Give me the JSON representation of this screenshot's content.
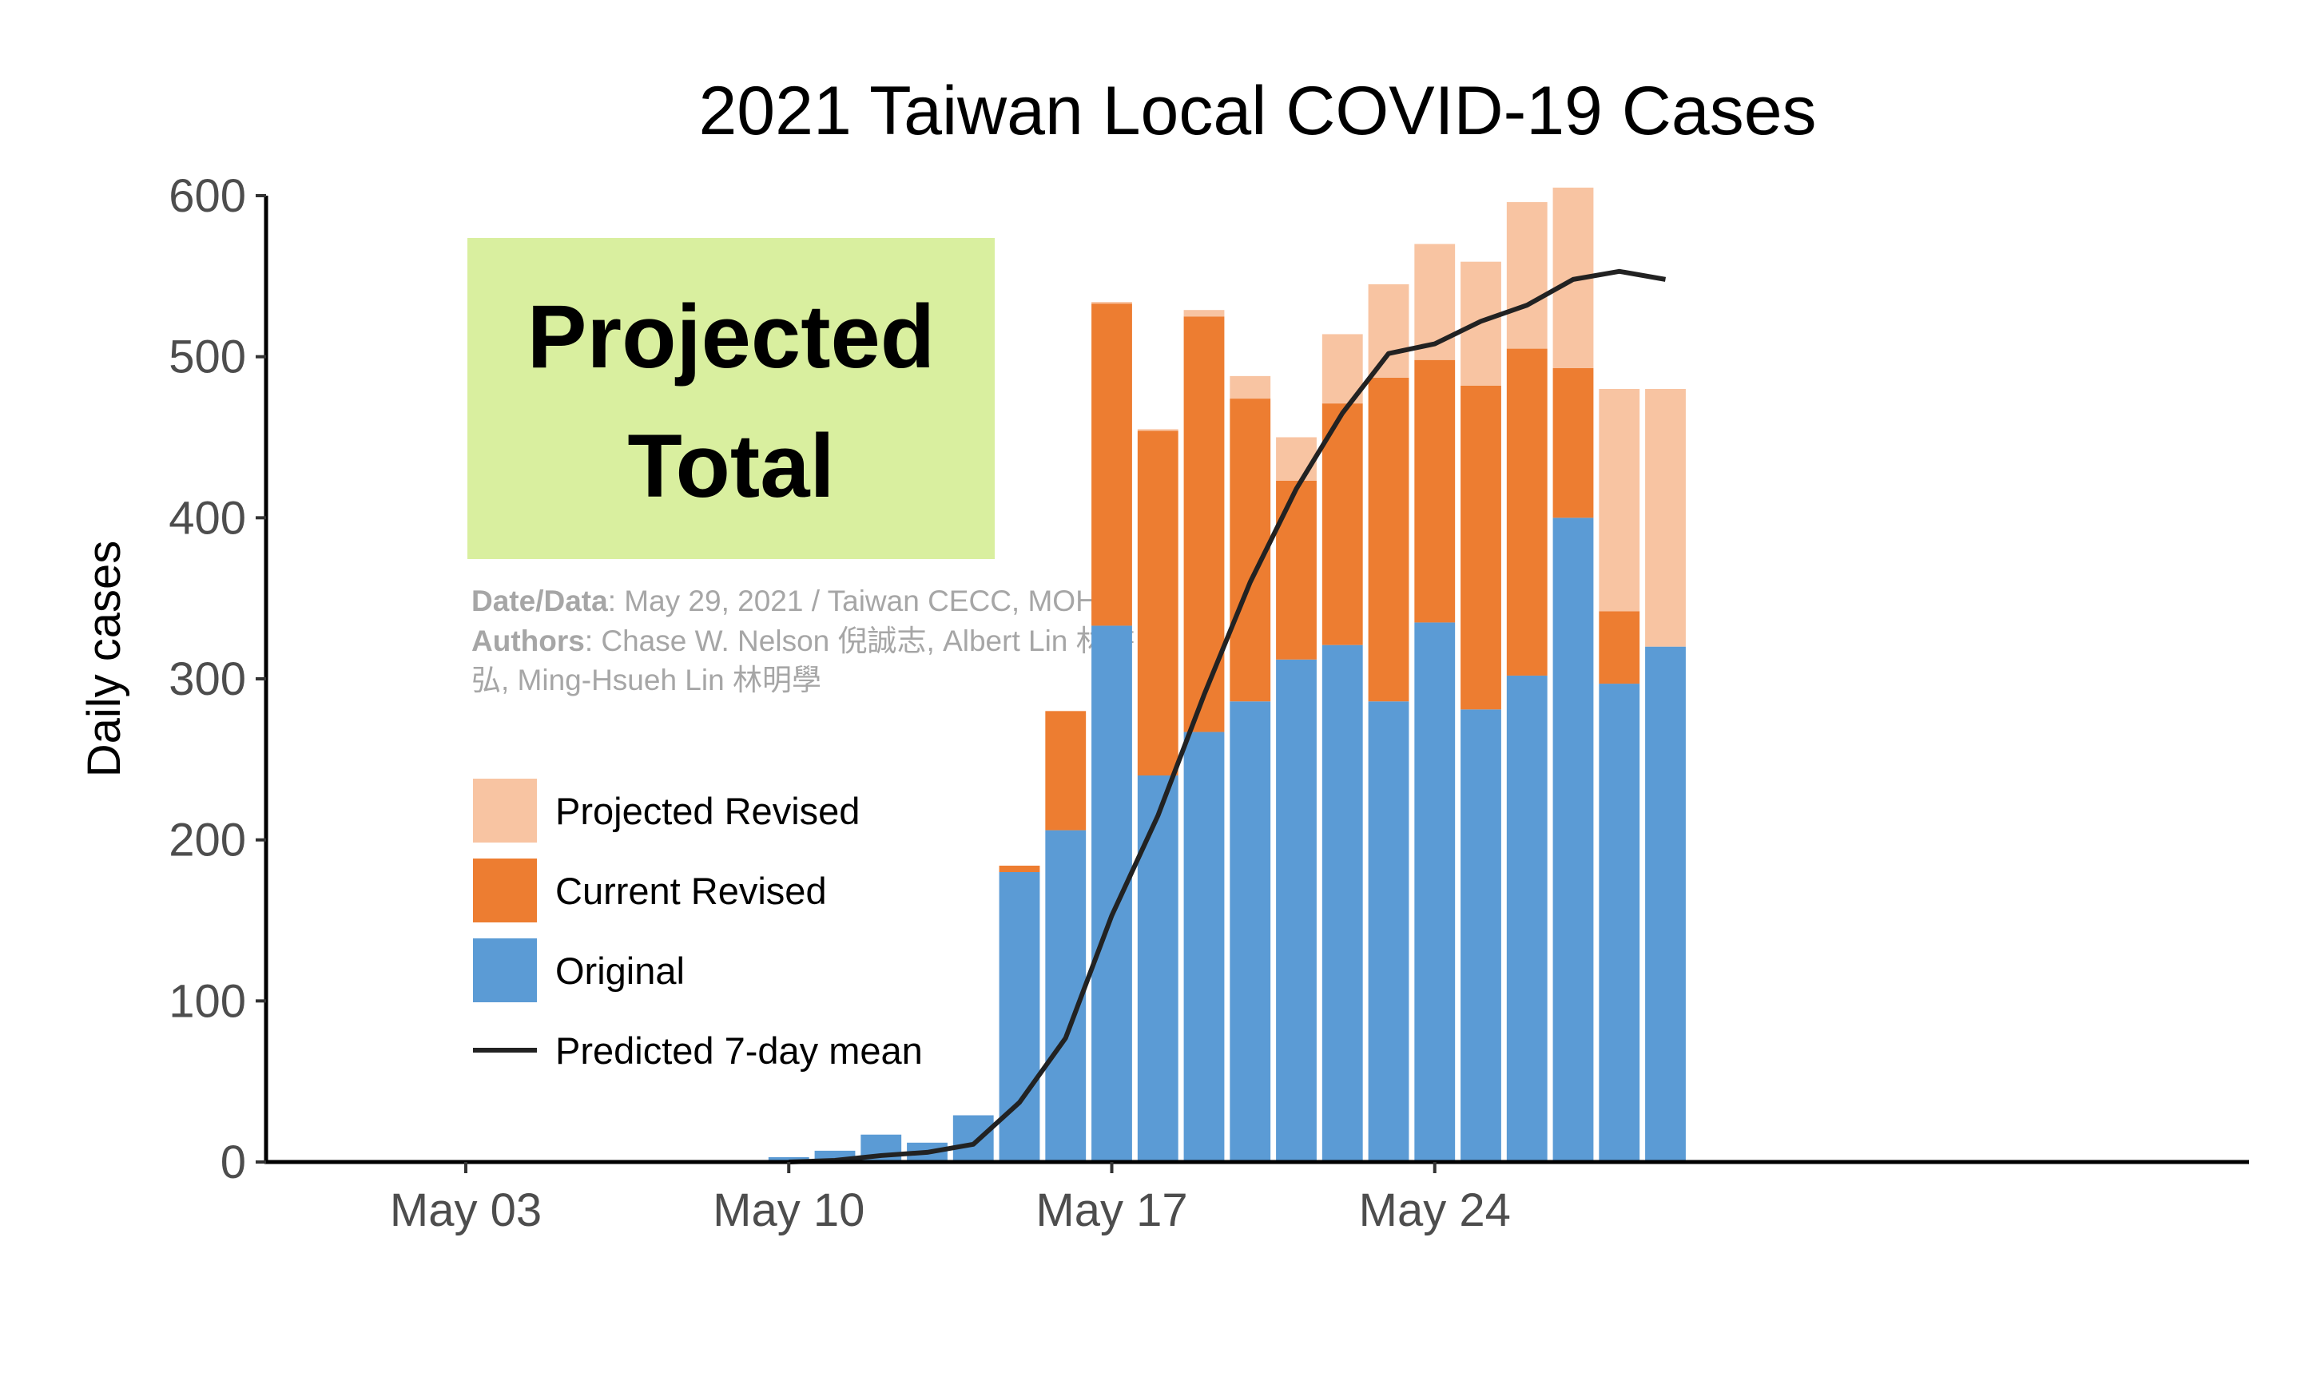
{
  "chart_data": {
    "type": "bar",
    "title": "2021 Taiwan Local COVID-19 Cases",
    "xlabel": "",
    "ylabel": "Daily cases",
    "ylim": [
      0,
      600
    ],
    "y_ticks": [
      0,
      100,
      200,
      300,
      400,
      500,
      600
    ],
    "x_ticks": [
      {
        "day": 3,
        "label": "May 03"
      },
      {
        "day": 10,
        "label": "May 10"
      },
      {
        "day": 17,
        "label": "May 17"
      },
      {
        "day": 24,
        "label": "May 24"
      }
    ],
    "x_range_days": [
      0,
      30.1
    ],
    "stacked": true,
    "series": [
      {
        "name": "Original",
        "color": "#5b9bd5",
        "x": [
          10,
          11,
          12,
          13,
          14,
          15,
          16,
          17,
          18,
          19,
          20,
          21,
          22,
          23,
          24,
          25,
          26,
          27,
          28,
          29
        ],
        "values": [
          3,
          7,
          17,
          12,
          29,
          180,
          206,
          333,
          240,
          267,
          286,
          312,
          321,
          286,
          335,
          281,
          302,
          400,
          297,
          320
        ]
      },
      {
        "name": "Current Revised",
        "color": "#ed7d31",
        "x": [
          10,
          11,
          12,
          13,
          14,
          15,
          16,
          17,
          18,
          19,
          20,
          21,
          22,
          23,
          24,
          25,
          26,
          27,
          28,
          29
        ],
        "values": [
          0,
          0,
          0,
          0,
          0,
          4,
          74,
          200,
          214,
          258,
          188,
          111,
          150,
          201,
          163,
          201,
          203,
          93,
          45,
          0
        ]
      },
      {
        "name": "Projected Revised",
        "color": "#f8c4a2",
        "x": [
          10,
          11,
          12,
          13,
          14,
          15,
          16,
          17,
          18,
          19,
          20,
          21,
          22,
          23,
          24,
          25,
          26,
          27,
          28,
          29
        ],
        "values": [
          0,
          0,
          0,
          0,
          0,
          0,
          0,
          1,
          1,
          4,
          14,
          27,
          43,
          58,
          72,
          77,
          91,
          112,
          138,
          160
        ]
      }
    ],
    "line": {
      "name": "Predicted 7-day mean",
      "color": "#222222",
      "x": [
        10,
        11,
        12,
        13,
        14,
        15,
        16,
        17,
        18,
        19,
        20,
        21,
        22,
        23,
        24,
        25,
        26,
        27,
        28,
        29
      ],
      "values": [
        0,
        1,
        4,
        6,
        11,
        37,
        77,
        153,
        215,
        290,
        360,
        418,
        465,
        502,
        508,
        522,
        532,
        548,
        553,
        548
      ]
    },
    "legend": {
      "position": "left",
      "order": [
        "Projected Revised",
        "Current Revised",
        "Original",
        "Predicted 7-day mean"
      ]
    },
    "grid": false
  },
  "annotation": {
    "stamp_line1": "Projected",
    "stamp_line2": "Total",
    "stamp_color": "#d9ef9f",
    "date_key": "Date/Data",
    "date_value": ": May 29, 2021 / Taiwan CECC, MOHW",
    "authors_key": "Authors",
    "authors_value_line1": ": Chase W. Nelson 倪誠志, Albert Lin 林書",
    "authors_value_line2": "弘, Ming-Hsueh Lin 林明學"
  }
}
